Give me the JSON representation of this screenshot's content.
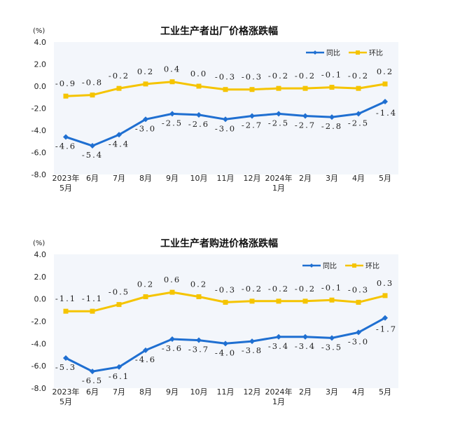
{
  "chart_data": [
    {
      "type": "line",
      "title": "工业生产者出厂价格涨跌幅",
      "unit_label": "(%)",
      "categories": [
        "2023年\n5月",
        "6月",
        "7月",
        "8月",
        "9月",
        "10月",
        "11月",
        "12月",
        "2024年\n1月",
        "2月",
        "3月",
        "4月",
        "5月"
      ],
      "ylim": [
        -8.0,
        4.0
      ],
      "yticks": [
        "4.0",
        "2.0",
        "0.0",
        "-2.0",
        "-4.0",
        "-6.0",
        "-8.0"
      ],
      "legend_position": "top-right",
      "series": [
        {
          "name": "同比",
          "color": "#1f6fd1",
          "values": [
            -4.6,
            -5.4,
            -4.4,
            -3.0,
            -2.5,
            -2.6,
            -3.0,
            -2.7,
            -2.5,
            -2.7,
            -2.8,
            -2.5,
            -1.4
          ],
          "labels": [
            "-4.6",
            "-5.4",
            "-4.4",
            "-3.0",
            "-2.5",
            "-2.6",
            "-3.0",
            "-2.7",
            "-2.5",
            "-2.7",
            "-2.8",
            "-2.5",
            "-1.4"
          ]
        },
        {
          "name": "环比",
          "color": "#f5c400",
          "values": [
            -0.9,
            -0.8,
            -0.2,
            0.2,
            0.4,
            0.0,
            -0.3,
            -0.3,
            -0.2,
            -0.2,
            -0.1,
            -0.2,
            0.2
          ],
          "labels": [
            "-0.9",
            "-0.8",
            "-0.2",
            "0.2",
            "0.4",
            "0.0",
            "-0.3",
            "-0.3",
            "-0.2",
            "-0.2",
            "-0.1",
            "-0.2",
            "0.2"
          ]
        }
      ]
    },
    {
      "type": "line",
      "title": "工业生产者购进价格涨跌幅",
      "unit_label": "(%)",
      "categories": [
        "2023年\n5月",
        "6月",
        "7月",
        "8月",
        "9月",
        "10月",
        "11月",
        "12月",
        "2024年\n1月",
        "2月",
        "3月",
        "4月",
        "5月"
      ],
      "ylim": [
        -8.0,
        4.0
      ],
      "yticks": [
        "4.0",
        "2.0",
        "0.0",
        "-2.0",
        "-4.0",
        "-6.0",
        "-8.0"
      ],
      "legend_position": "top-right",
      "series": [
        {
          "name": "同比",
          "color": "#1f6fd1",
          "values": [
            -5.3,
            -6.5,
            -6.1,
            -4.6,
            -3.6,
            -3.7,
            -4.0,
            -3.8,
            -3.4,
            -3.4,
            -3.5,
            -3.0,
            -1.7
          ],
          "labels": [
            "-5.3",
            "-6.5",
            "-6.1",
            "-4.6",
            "-3.6",
            "-3.7",
            "-4.0",
            "-3.8",
            "-3.4",
            "-3.4",
            "-3.5",
            "-3.0",
            "-1.7"
          ]
        },
        {
          "name": "环比",
          "color": "#f5c400",
          "values": [
            -1.1,
            -1.1,
            -0.5,
            0.2,
            0.6,
            0.2,
            -0.3,
            -0.2,
            -0.2,
            -0.2,
            -0.1,
            -0.3,
            0.3
          ],
          "labels": [
            "-1.1",
            "-1.1",
            "-0.5",
            "0.2",
            "0.6",
            "0.2",
            "-0.3",
            "-0.2",
            "-0.2",
            "-0.2",
            "-0.1",
            "-0.3",
            "0.3"
          ]
        }
      ]
    }
  ]
}
